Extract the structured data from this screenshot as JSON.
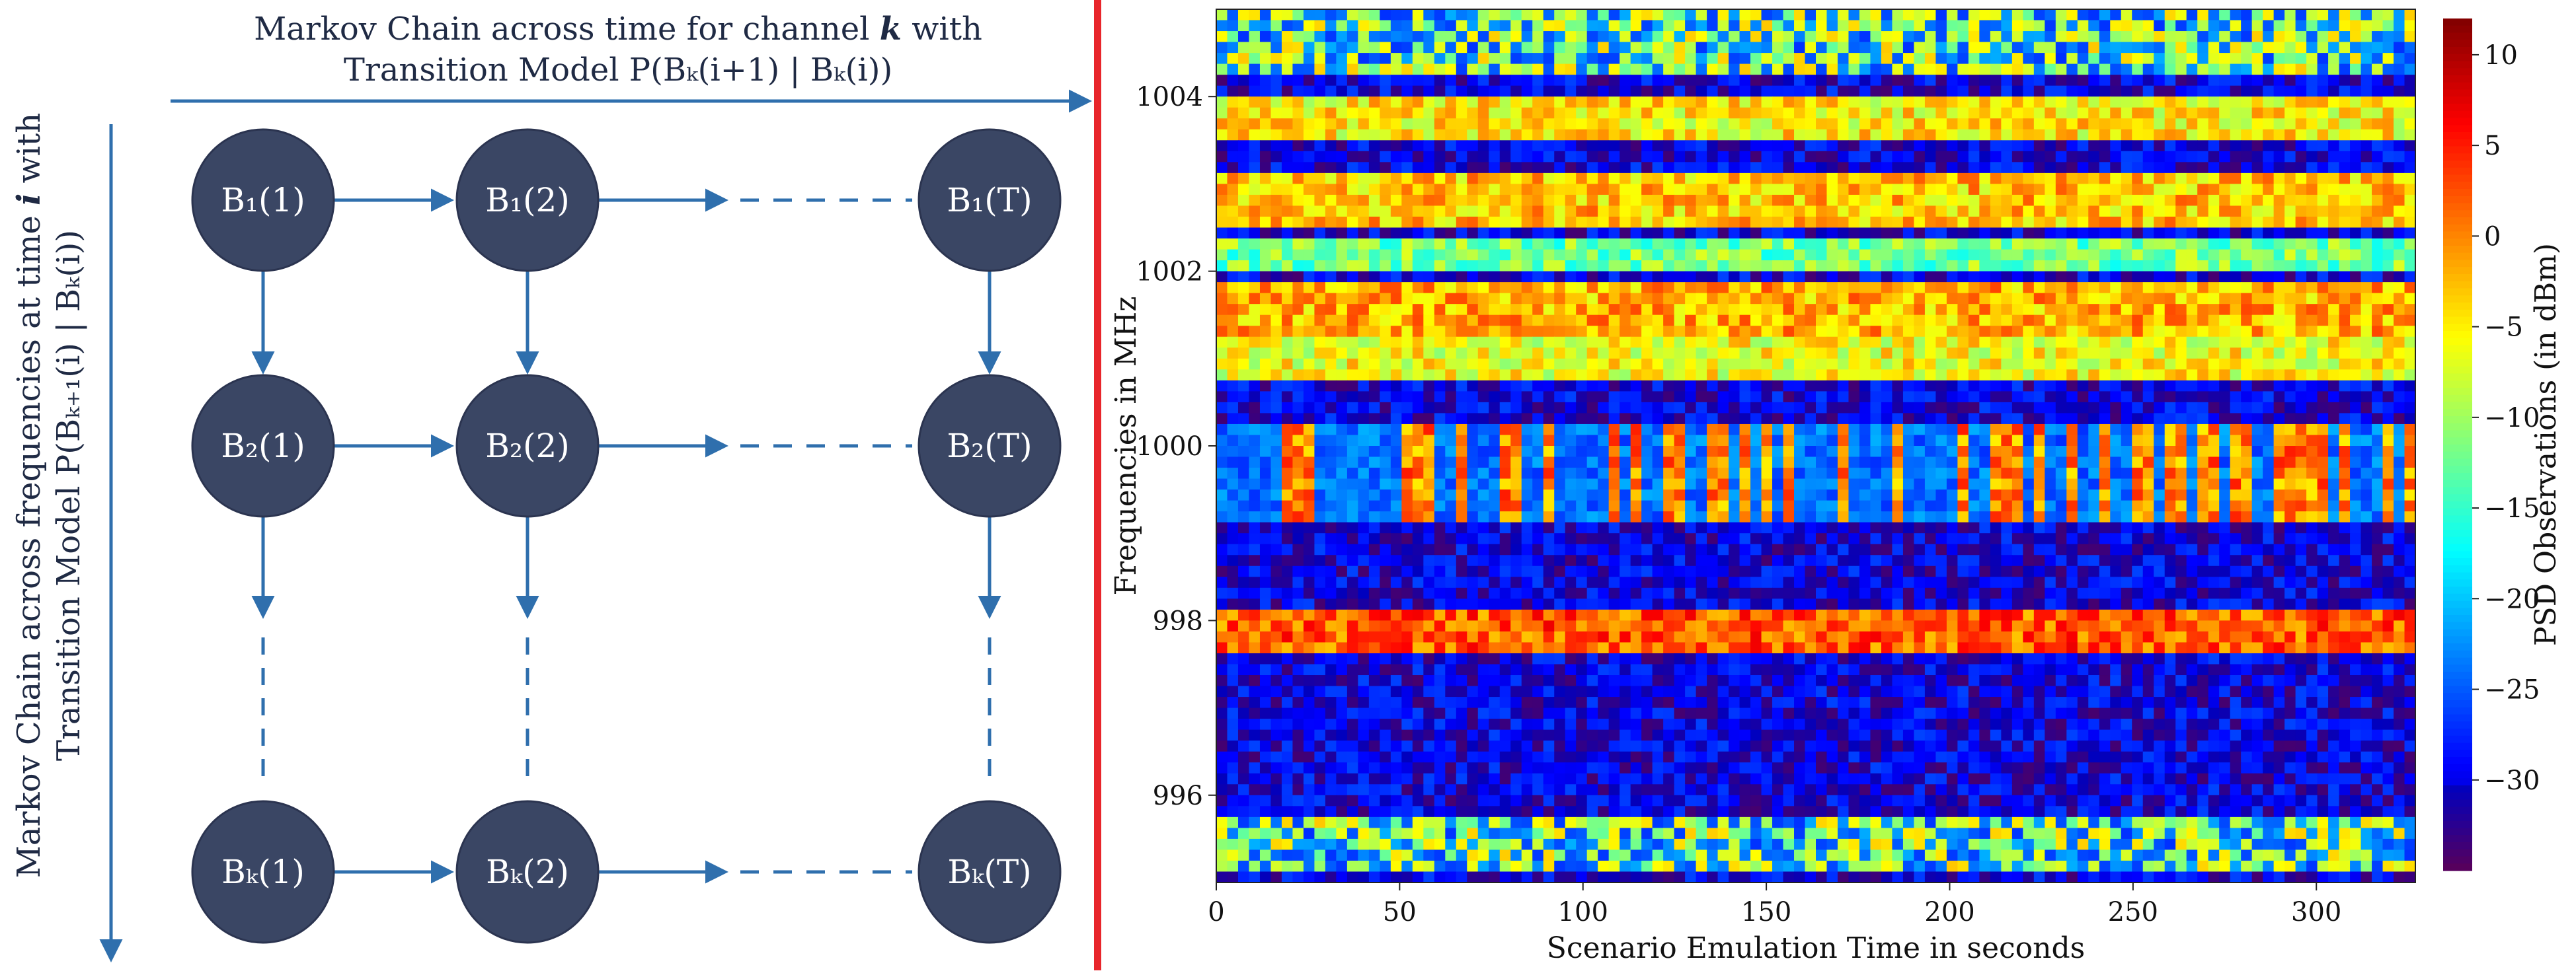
{
  "diagram": {
    "top_title_line1": "Markov Chain across time for channel ",
    "top_title_k": "k",
    "top_title_line1_end": " with",
    "top_title_line2": "Transition Model P(Bₖ(i+1) | Bₖ(i))",
    "left_title_line1_start": "Markov Chain across frequencies at time ",
    "left_title_i": "i",
    "left_title_line1_end": " with",
    "left_title_line2": "Transition Model P(Bₖ₊₁(i) | Bₖ(i))",
    "nodes": [
      [
        "B₁(1)",
        "B₁(2)",
        "B₁(T)"
      ],
      [
        "B₂(1)",
        "B₂(2)",
        "B₂(T)"
      ],
      [
        "Bₖ(1)",
        "Bₖ(2)",
        "Bₖ(T)"
      ]
    ],
    "colors": {
      "node_fill": "#3a4664",
      "arrow": "#2f6fad",
      "text": "#1f2a44",
      "separator": "#e8262b"
    }
  },
  "chart_data": {
    "type": "heatmap",
    "title": "",
    "xlabel": "Scenario Emulation Time in seconds",
    "ylabel": "Frequencies in MHz",
    "colorbar_label": "PSD Observations (in dBm)",
    "xlim": [
      0,
      327
    ],
    "ylim": [
      995,
      1005
    ],
    "xticks": [
      0,
      50,
      100,
      150,
      200,
      250,
      300
    ],
    "yticks": [
      996,
      998,
      1000,
      1002,
      1004
    ],
    "clim": [
      -35,
      12
    ],
    "colorbar_ticks": [
      10,
      5,
      0,
      -5,
      -10,
      -15,
      -20,
      -25,
      -30
    ],
    "colormap": "jet",
    "bands": [
      {
        "center_mhz": 1004.6,
        "half_width": 0.35,
        "level_dbm": -8,
        "pattern": "bursty"
      },
      {
        "center_mhz": 1003.7,
        "half_width": 0.25,
        "level_dbm": -5,
        "pattern": "continuous"
      },
      {
        "center_mhz": 1002.8,
        "half_width": 0.3,
        "level_dbm": -3,
        "pattern": "continuous"
      },
      {
        "center_mhz": 1002.2,
        "half_width": 0.2,
        "level_dbm": -12,
        "pattern": "continuous"
      },
      {
        "center_mhz": 1001.6,
        "half_width": 0.3,
        "level_dbm": -2,
        "pattern": "continuous"
      },
      {
        "center_mhz": 1001.0,
        "half_width": 0.3,
        "level_dbm": -6,
        "pattern": "continuous"
      },
      {
        "center_mhz": 999.7,
        "half_width": 0.55,
        "level_dbm": 0,
        "pattern": "periodic"
      },
      {
        "center_mhz": 997.9,
        "half_width": 0.28,
        "level_dbm": 2,
        "pattern": "continuous"
      },
      {
        "center_mhz": 995.4,
        "half_width": 0.3,
        "level_dbm": -8,
        "pattern": "bursty"
      }
    ],
    "noise_floor_dbm": -30
  }
}
